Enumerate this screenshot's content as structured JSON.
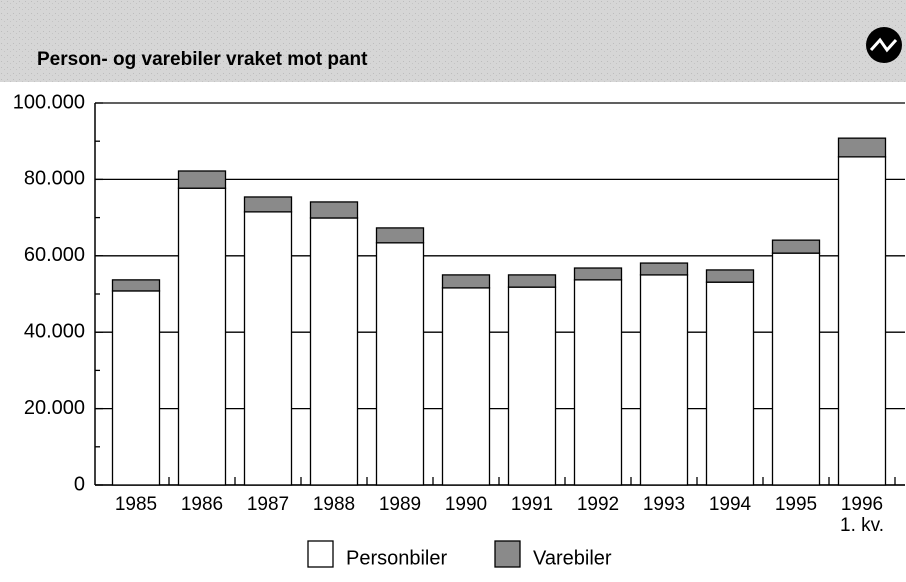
{
  "chart_data": {
    "type": "bar",
    "stacked": true,
    "title": "Person- og varebiler vraket mot pant",
    "categories": [
      "1985",
      "1986",
      "1987",
      "1988",
      "1989",
      "1990",
      "1991",
      "1992",
      "1993",
      "1994",
      "1995",
      "1996\n1. kv."
    ],
    "series": [
      {
        "name": "Personbiler",
        "color": "#ffffff",
        "values": [
          50800,
          77700,
          71500,
          69900,
          63400,
          51600,
          51800,
          53700,
          55000,
          53100,
          60700,
          85900
        ]
      },
      {
        "name": "Varebiler",
        "color": "#8a8a8a",
        "values": [
          2900,
          4500,
          3900,
          4200,
          3900,
          3400,
          3200,
          3100,
          3100,
          3200,
          3400,
          4900
        ]
      }
    ],
    "ylim": [
      0,
      100000
    ],
    "yticks": [
      0,
      {
        "value": 20000,
        "label": "20.000"
      },
      {
        "value": 40000,
        "label": "40.000"
      },
      {
        "value": 60000,
        "label": "60.000"
      },
      {
        "value": 80000,
        "label": "80.000"
      },
      {
        "value": 100000,
        "label": "100.000"
      }
    ],
    "grid": true
  }
}
